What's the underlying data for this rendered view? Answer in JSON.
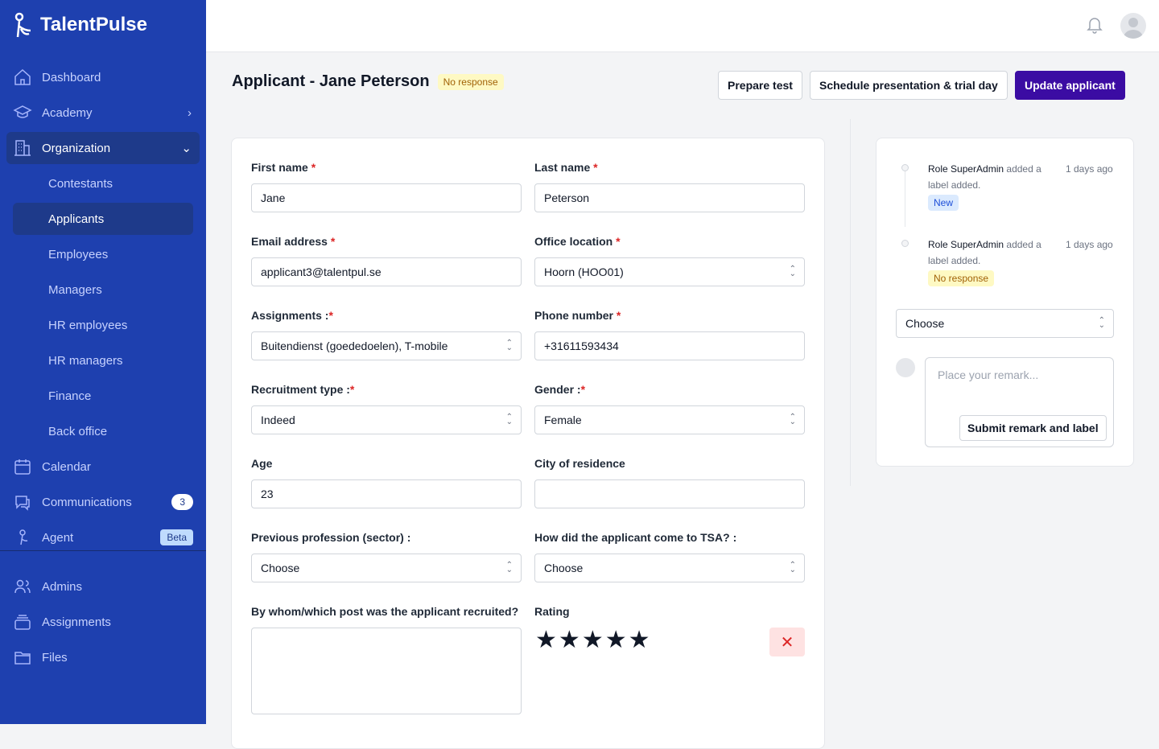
{
  "brand": "TalentPulse",
  "sidebar": {
    "items": [
      {
        "label": "Dashboard"
      },
      {
        "label": "Academy"
      },
      {
        "label": "Organization"
      },
      {
        "label": "Contestants"
      },
      {
        "label": "Applicants"
      },
      {
        "label": "Employees"
      },
      {
        "label": "Managers"
      },
      {
        "label": "HR employees"
      },
      {
        "label": "HR managers"
      },
      {
        "label": "Finance"
      },
      {
        "label": "Back office"
      },
      {
        "label": "Calendar"
      },
      {
        "label": "Communications",
        "badge": "3"
      },
      {
        "label": "Agent",
        "badge": "Beta"
      }
    ],
    "bottom": [
      {
        "label": "Admins"
      },
      {
        "label": "Assignments"
      },
      {
        "label": "Files"
      }
    ]
  },
  "header": {
    "title": "Applicant - Jane Peterson",
    "status": "No response",
    "prepare_test": "Prepare test",
    "schedule": "Schedule presentation & trial day",
    "update": "Update applicant"
  },
  "form": {
    "first_name": {
      "label": "First name",
      "value": "Jane"
    },
    "last_name": {
      "label": "Last name",
      "value": "Peterson"
    },
    "email": {
      "label": "Email address",
      "value": "applicant3@talentpul.se"
    },
    "office": {
      "label": "Office location",
      "value": "Hoorn (HOO01)"
    },
    "assignments": {
      "label": "Assignments :",
      "value": "Buitendienst (goededoelen), T-mobile"
    },
    "phone": {
      "label": "Phone number",
      "value": "+31611593434"
    },
    "recruitment": {
      "label": "Recruitment type :",
      "value": "Indeed"
    },
    "gender": {
      "label": "Gender :",
      "value": "Female"
    },
    "age": {
      "label": "Age",
      "value": "23"
    },
    "city": {
      "label": "City of residence",
      "value": ""
    },
    "profession": {
      "label": "Previous profession (sector) :",
      "value": "Choose"
    },
    "how": {
      "label": "How did the applicant come to TSA? :",
      "value": "Choose"
    },
    "by_whom": {
      "label": "By whom/which post was the applicant recruited?",
      "value": ""
    },
    "rating": {
      "label": "Rating",
      "value": 5,
      "max": 5
    }
  },
  "activity": [
    {
      "actor": "Role SuperAdmin",
      "text": "added a label added.",
      "time": "1 days ago",
      "label": "New"
    },
    {
      "actor": "Role SuperAdmin",
      "text": "added a label added.",
      "time": "1 days ago",
      "label": "No response"
    }
  ],
  "remark": {
    "select": "Choose",
    "placeholder": "Place your remark...",
    "submit": "Submit remark and label"
  }
}
